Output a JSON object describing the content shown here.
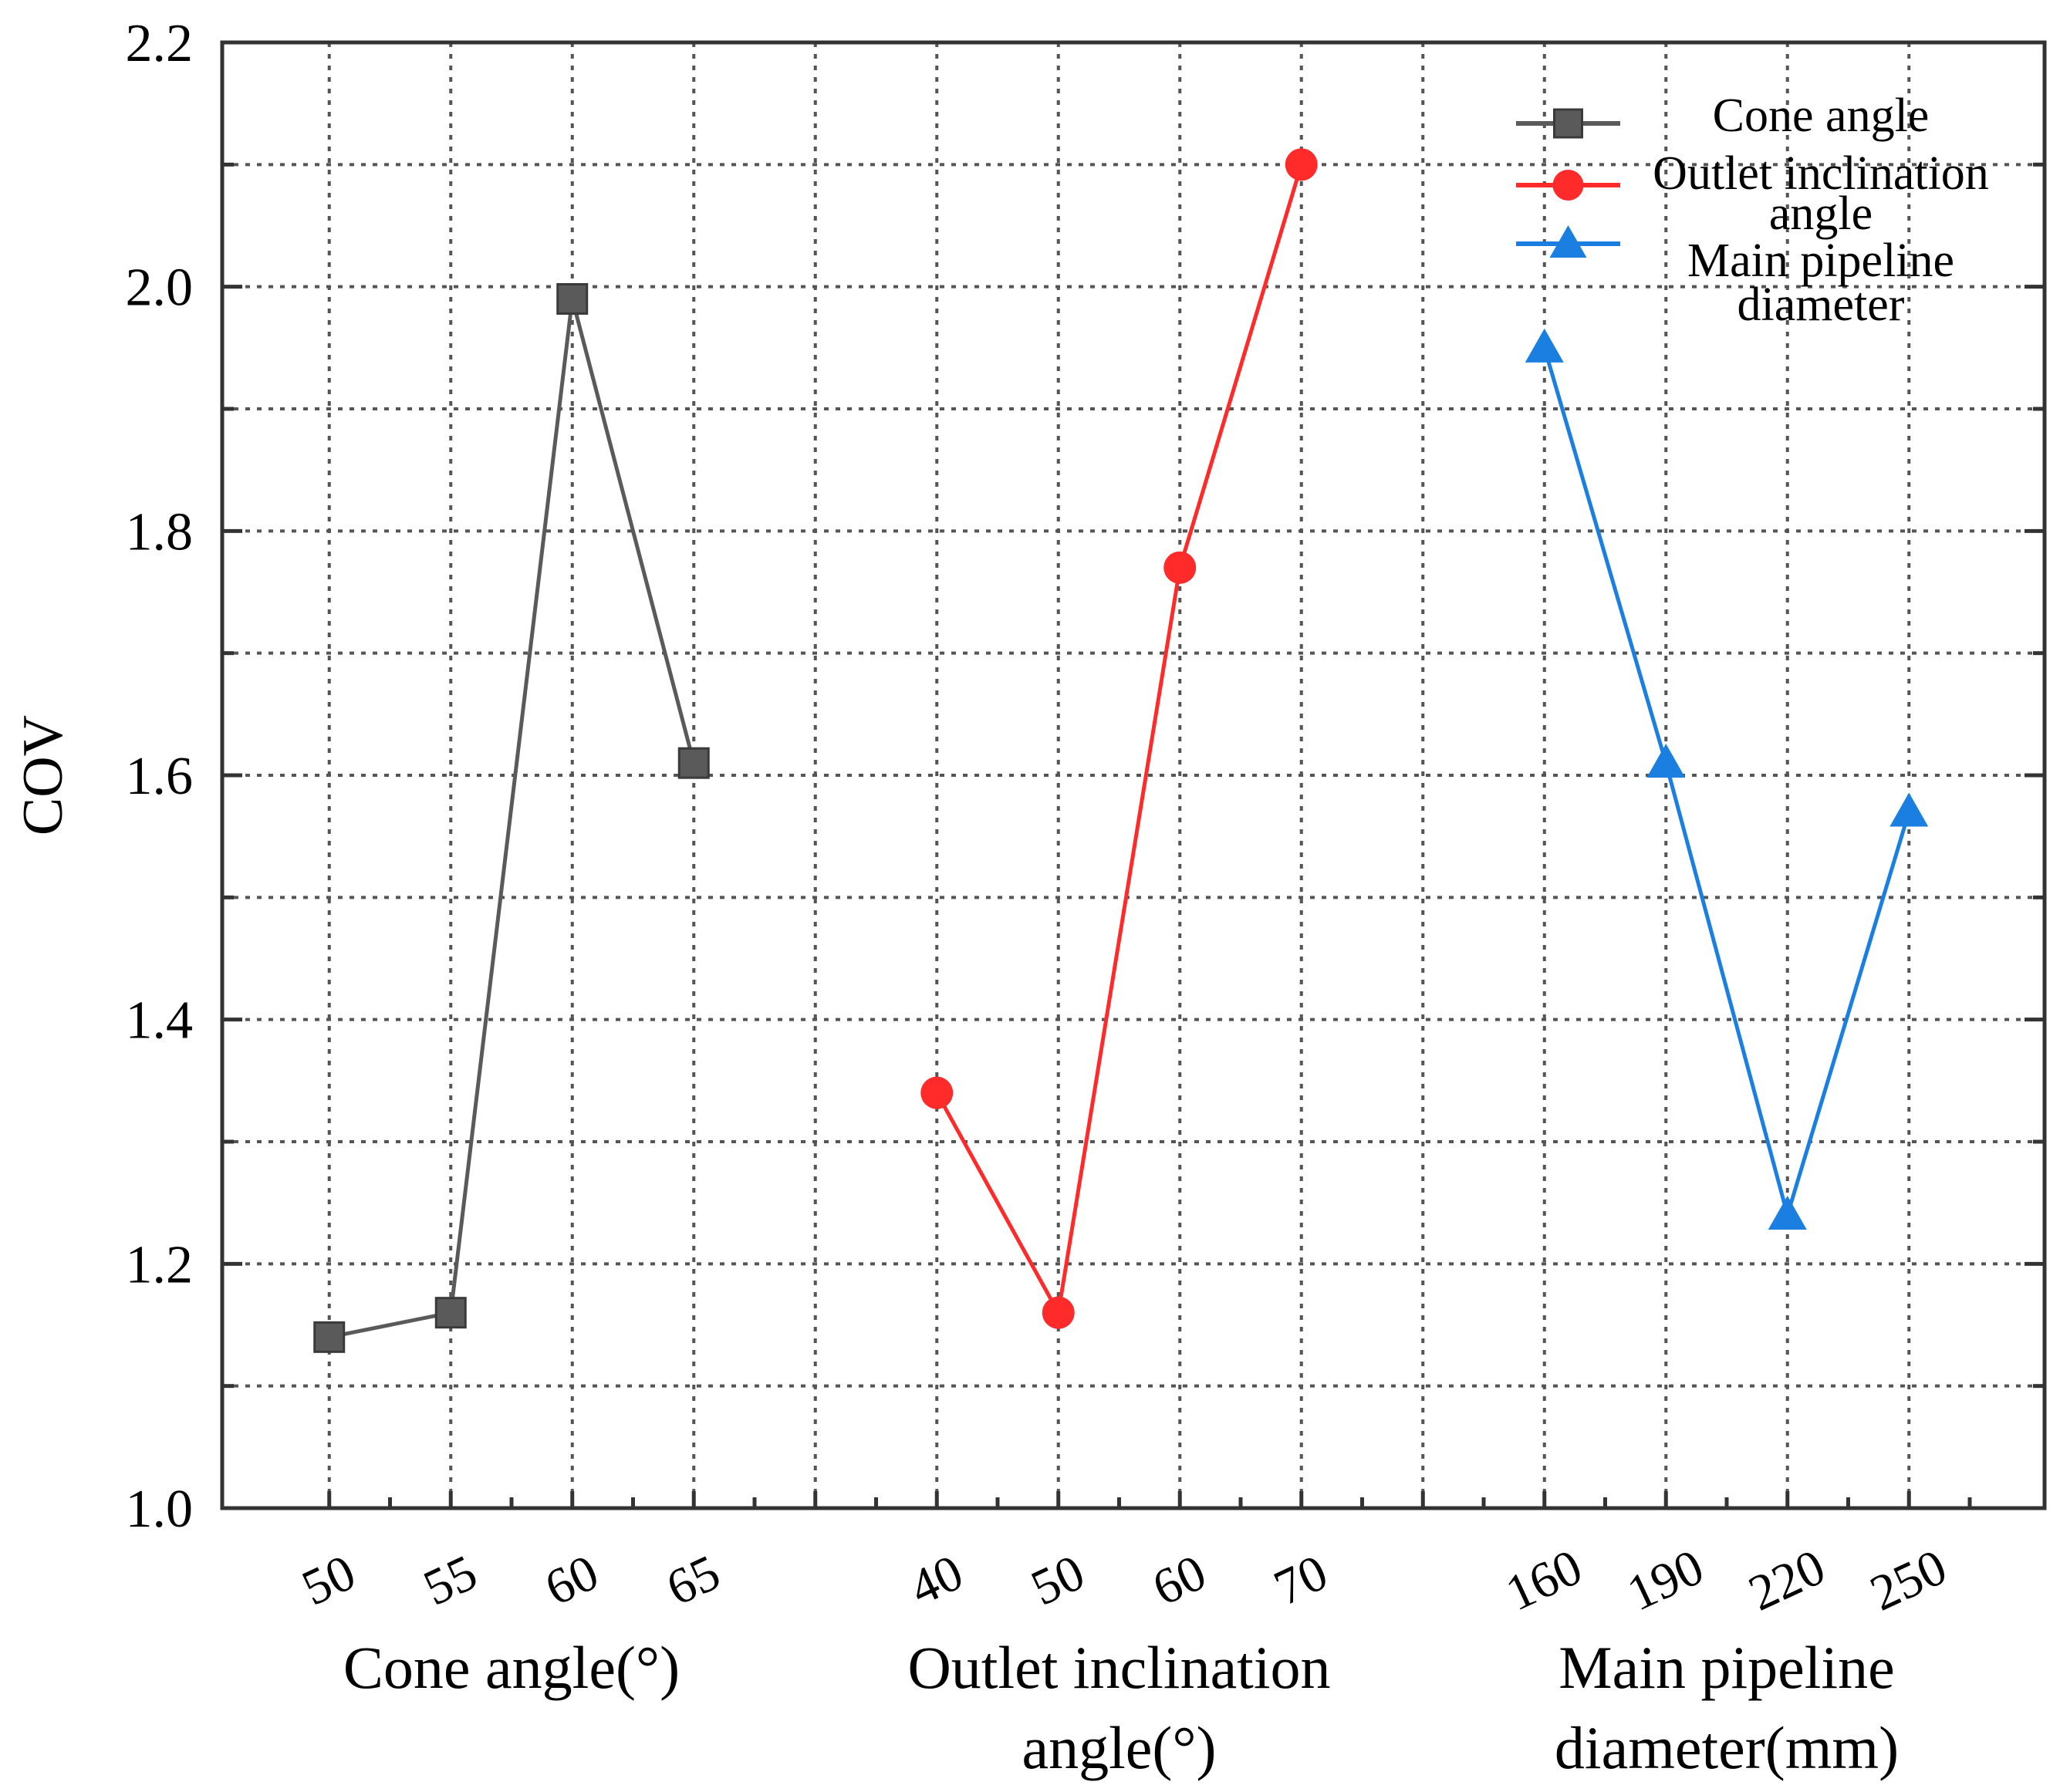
{
  "chart_data": {
    "type": "line",
    "ylabel": "COV",
    "ylim": [
      1.0,
      2.2
    ],
    "yticks": [
      "1.0",
      "1.2",
      "1.4",
      "1.6",
      "1.8",
      "2.0",
      "2.2"
    ],
    "grid": true,
    "legend_position": "top-right",
    "series": [
      {
        "name": "Cone angle",
        "color": "#5a5a5a",
        "marker": "square",
        "x_labels": [
          "50",
          "55",
          "60",
          "65"
        ],
        "values": [
          1.14,
          1.16,
          1.99,
          1.61
        ],
        "xlabel": [
          "Cone angle(°)"
        ]
      },
      {
        "name": "Outlet inclination angle",
        "legend_lines": [
          "Outlet inclination",
          "angle"
        ],
        "color": "#ff2a2a",
        "marker": "circle",
        "x_labels": [
          "40",
          "50",
          "60",
          "70"
        ],
        "values": [
          1.34,
          1.16,
          1.77,
          2.1
        ],
        "xlabel": [
          "Outlet inclination",
          "angle(°)"
        ]
      },
      {
        "name": "Main pipeline diameter",
        "legend_lines": [
          "Main pipeline",
          "diameter"
        ],
        "color": "#1a7fe0",
        "marker": "triangle",
        "x_labels": [
          "160",
          "190",
          "220",
          "250"
        ],
        "values": [
          1.95,
          1.61,
          1.24,
          1.57
        ],
        "xlabel": [
          "Main pipeline",
          "diameter(mm)"
        ]
      }
    ]
  }
}
